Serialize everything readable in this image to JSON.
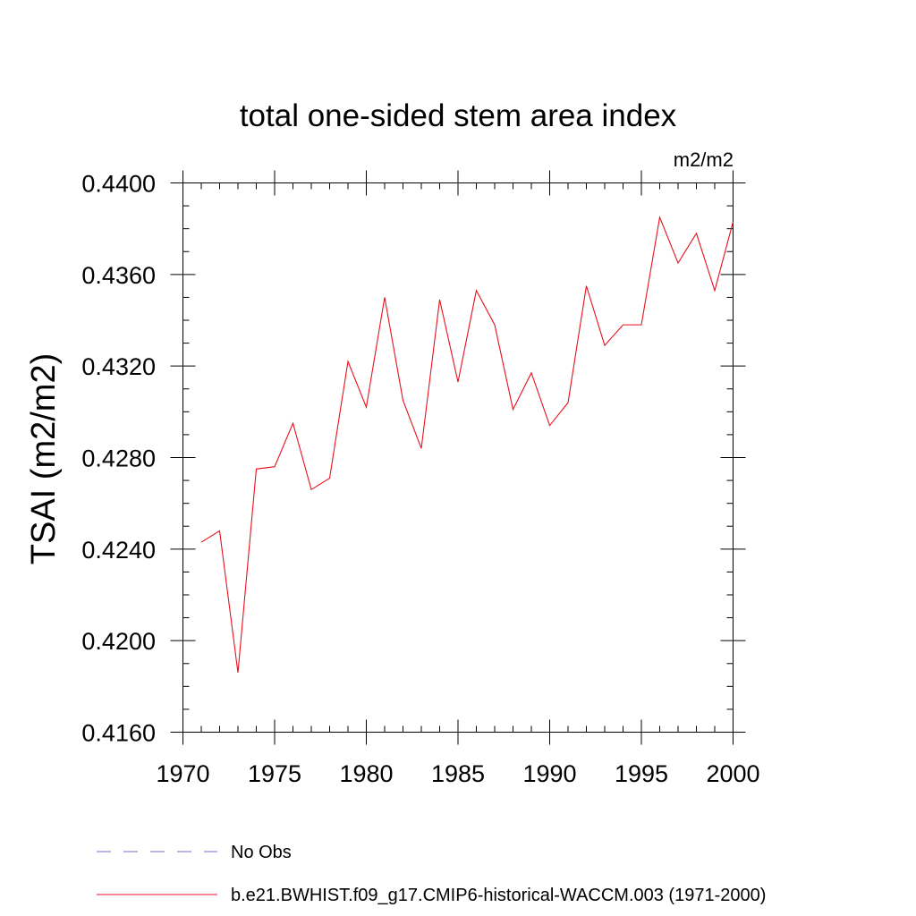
{
  "chart_data": {
    "type": "line",
    "title": "total one-sided stem area index",
    "units": "m2/m2",
    "ylabel": "TSAI  (m2/m2)",
    "xlabel": "",
    "xlim": [
      1970,
      2000
    ],
    "ylim": [
      0.416,
      0.44
    ],
    "x_major_ticks": [
      1970,
      1975,
      1980,
      1985,
      1990,
      1995,
      2000
    ],
    "x_tick_labels": [
      "1970",
      "1975",
      "1980",
      "1985",
      "1990",
      "1995",
      "2000"
    ],
    "y_major_ticks": [
      0.416,
      0.42,
      0.424,
      0.428,
      0.432,
      0.436,
      0.44
    ],
    "y_tick_labels": [
      "0.4160",
      "0.4200",
      "0.4240",
      "0.4280",
      "0.4320",
      "0.4360",
      "0.4400"
    ],
    "x_minor_step": 1,
    "y_minor_step": 0.001,
    "grid": false,
    "legend_placement": "bottom",
    "series": [
      {
        "name": "No Obs",
        "color": "#7b6fd0",
        "dash": "dashed",
        "x": [],
        "values": []
      },
      {
        "name": "b.e21.BWHIST.f09_g17.CMIP6-historical-WACCM.003 (1971-2000)",
        "color": "#e8101c",
        "dash": "solid",
        "x": [
          1971,
          1972,
          1973,
          1974,
          1975,
          1976,
          1977,
          1978,
          1979,
          1980,
          1981,
          1982,
          1983,
          1984,
          1985,
          1986,
          1987,
          1988,
          1989,
          1990,
          1991,
          1992,
          1993,
          1994,
          1995,
          1996,
          1997,
          1998,
          1999,
          2000
        ],
        "values": [
          0.4243,
          0.4248,
          0.4186,
          0.4275,
          0.4276,
          0.4295,
          0.4266,
          0.4271,
          0.4322,
          0.4302,
          0.435,
          0.4305,
          0.4284,
          0.4349,
          0.4313,
          0.4353,
          0.4338,
          0.4301,
          0.4317,
          0.4294,
          0.4304,
          0.4355,
          0.4329,
          0.4338,
          0.4338,
          0.4385,
          0.4365,
          0.4378,
          0.4353,
          0.4383
        ]
      }
    ]
  }
}
